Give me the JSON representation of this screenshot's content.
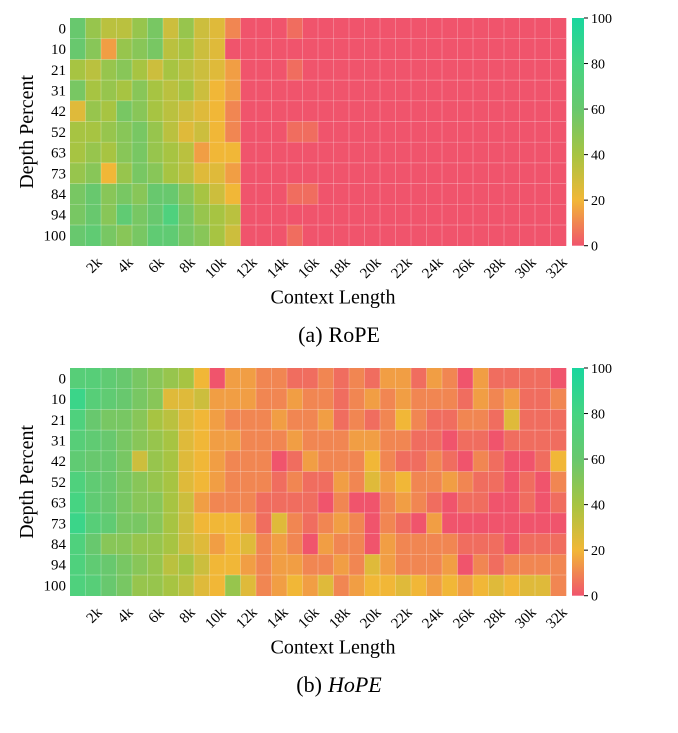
{
  "chart_data": [
    {
      "type": "heatmap",
      "caption_tag": "(a)",
      "model": "RoPE",
      "model_italic": false,
      "xlabel": "Context Length",
      "ylabel": "Depth Percent",
      "y_categories": [
        "0",
        "10",
        "21",
        "31",
        "42",
        "52",
        "63",
        "73",
        "84",
        "94",
        "100"
      ],
      "x_tick_labels": [
        "2k",
        "4k",
        "6k",
        "8k",
        "10k",
        "12k",
        "14k",
        "16k",
        "18k",
        "20k",
        "22k",
        "24k",
        "26k",
        "28k",
        "30k",
        "32k"
      ],
      "n_columns": 32,
      "colorbar": {
        "min": 0,
        "max": 100,
        "ticks": [
          "0",
          "20",
          "40",
          "60",
          "80",
          "100"
        ]
      },
      "values": [
        [
          60,
          45,
          35,
          35,
          45,
          55,
          30,
          45,
          30,
          25,
          10,
          0,
          0,
          0,
          5,
          0,
          0,
          0,
          0,
          0,
          0,
          0,
          0,
          0,
          0,
          0,
          0,
          0,
          0,
          0,
          0,
          0
        ],
        [
          60,
          50,
          15,
          45,
          50,
          55,
          35,
          40,
          30,
          25,
          0,
          0,
          0,
          0,
          0,
          0,
          0,
          0,
          0,
          0,
          0,
          0,
          0,
          0,
          0,
          0,
          0,
          0,
          0,
          0,
          0,
          0
        ],
        [
          40,
          35,
          45,
          50,
          40,
          30,
          40,
          35,
          30,
          25,
          15,
          0,
          0,
          0,
          5,
          0,
          0,
          0,
          0,
          0,
          0,
          0,
          0,
          0,
          0,
          0,
          0,
          0,
          0,
          0,
          0,
          0
        ],
        [
          55,
          40,
          45,
          40,
          50,
          40,
          35,
          40,
          30,
          20,
          15,
          0,
          0,
          0,
          0,
          0,
          0,
          0,
          0,
          0,
          0,
          0,
          0,
          0,
          0,
          0,
          0,
          0,
          0,
          0,
          0,
          0
        ],
        [
          25,
          45,
          40,
          55,
          50,
          40,
          35,
          30,
          25,
          20,
          10,
          0,
          0,
          0,
          0,
          0,
          0,
          0,
          0,
          0,
          0,
          0,
          0,
          0,
          0,
          0,
          0,
          0,
          0,
          0,
          0,
          0
        ],
        [
          40,
          40,
          45,
          50,
          55,
          45,
          35,
          25,
          30,
          20,
          10,
          0,
          0,
          0,
          5,
          5,
          0,
          0,
          0,
          0,
          0,
          0,
          0,
          0,
          0,
          0,
          0,
          0,
          0,
          0,
          0,
          0
        ],
        [
          40,
          45,
          40,
          50,
          55,
          45,
          40,
          35,
          15,
          20,
          20,
          0,
          0,
          0,
          0,
          0,
          0,
          0,
          0,
          0,
          0,
          0,
          0,
          0,
          0,
          0,
          0,
          0,
          0,
          0,
          0,
          0
        ],
        [
          45,
          50,
          20,
          45,
          55,
          50,
          40,
          35,
          25,
          25,
          15,
          0,
          0,
          0,
          0,
          0,
          0,
          0,
          0,
          0,
          0,
          0,
          0,
          0,
          0,
          0,
          0,
          0,
          0,
          0,
          0,
          0
        ],
        [
          55,
          60,
          50,
          55,
          50,
          60,
          60,
          50,
          40,
          30,
          20,
          0,
          0,
          0,
          5,
          5,
          0,
          0,
          0,
          0,
          0,
          0,
          0,
          0,
          0,
          0,
          0,
          0,
          0,
          0,
          0,
          0
        ],
        [
          55,
          60,
          50,
          65,
          55,
          60,
          75,
          55,
          45,
          40,
          35,
          0,
          0,
          0,
          0,
          0,
          0,
          0,
          0,
          0,
          0,
          0,
          0,
          0,
          0,
          0,
          0,
          0,
          0,
          0,
          0,
          0
        ],
        [
          60,
          65,
          55,
          50,
          55,
          65,
          65,
          55,
          50,
          40,
          30,
          0,
          0,
          0,
          5,
          0,
          0,
          0,
          0,
          0,
          0,
          0,
          0,
          0,
          0,
          0,
          0,
          0,
          0,
          0,
          0,
          0
        ]
      ]
    },
    {
      "type": "heatmap",
      "caption_tag": "(b)",
      "model": "HoPE",
      "model_italic": true,
      "xlabel": "Context Length",
      "ylabel": "Depth Percent",
      "y_categories": [
        "0",
        "10",
        "21",
        "31",
        "42",
        "52",
        "63",
        "73",
        "84",
        "94",
        "100"
      ],
      "x_tick_labels": [
        "2k",
        "4k",
        "6k",
        "8k",
        "10k",
        "12k",
        "14k",
        "16k",
        "18k",
        "20k",
        "22k",
        "24k",
        "26k",
        "28k",
        "30k",
        "32k"
      ],
      "n_columns": 32,
      "colorbar": {
        "min": 0,
        "max": 100,
        "ticks": [
          "0",
          "20",
          "40",
          "60",
          "80",
          "100"
        ]
      },
      "values": [
        [
          70,
          70,
          65,
          60,
          55,
          50,
          45,
          40,
          20,
          0,
          15,
          15,
          10,
          10,
          5,
          5,
          10,
          5,
          10,
          5,
          15,
          15,
          5,
          15,
          10,
          0,
          15,
          5,
          5,
          5,
          5,
          0
        ],
        [
          85,
          70,
          65,
          60,
          55,
          50,
          25,
          25,
          30,
          15,
          15,
          15,
          10,
          10,
          15,
          10,
          10,
          5,
          10,
          15,
          10,
          15,
          10,
          10,
          10,
          5,
          15,
          10,
          15,
          5,
          5,
          10
        ],
        [
          75,
          60,
          55,
          55,
          50,
          40,
          35,
          25,
          20,
          15,
          10,
          10,
          10,
          15,
          10,
          10,
          15,
          5,
          10,
          5,
          10,
          20,
          10,
          5,
          5,
          10,
          10,
          5,
          25,
          5,
          5,
          5
        ],
        [
          70,
          65,
          60,
          55,
          50,
          45,
          40,
          25,
          20,
          15,
          15,
          10,
          10,
          10,
          15,
          10,
          10,
          10,
          15,
          15,
          10,
          10,
          5,
          5,
          0,
          5,
          5,
          0,
          5,
          5,
          5,
          5
        ],
        [
          65,
          60,
          60,
          55,
          30,
          45,
          40,
          25,
          20,
          15,
          10,
          10,
          10,
          0,
          5,
          15,
          10,
          10,
          10,
          20,
          10,
          5,
          5,
          10,
          5,
          0,
          10,
          5,
          0,
          0,
          5,
          20
        ],
        [
          75,
          65,
          60,
          55,
          50,
          45,
          40,
          25,
          20,
          15,
          10,
          10,
          10,
          5,
          10,
          5,
          5,
          15,
          10,
          25,
          15,
          20,
          10,
          10,
          15,
          10,
          5,
          5,
          0,
          5,
          0,
          10
        ],
        [
          80,
          65,
          60,
          55,
          50,
          50,
          40,
          30,
          15,
          10,
          10,
          10,
          5,
          5,
          5,
          5,
          0,
          10,
          0,
          0,
          10,
          15,
          10,
          5,
          0,
          5,
          5,
          0,
          0,
          5,
          0,
          5
        ],
        [
          85,
          70,
          65,
          55,
          55,
          50,
          40,
          30,
          20,
          20,
          20,
          15,
          5,
          25,
          10,
          5,
          10,
          15,
          10,
          0,
          10,
          5,
          0,
          15,
          0,
          0,
          0,
          0,
          0,
          0,
          0,
          0
        ],
        [
          75,
          60,
          50,
          50,
          45,
          45,
          40,
          30,
          25,
          15,
          20,
          25,
          10,
          15,
          10,
          0,
          15,
          10,
          10,
          0,
          15,
          10,
          10,
          10,
          10,
          5,
          5,
          5,
          0,
          5,
          5,
          5
        ],
        [
          75,
          65,
          60,
          55,
          50,
          45,
          35,
          40,
          30,
          20,
          20,
          15,
          10,
          15,
          15,
          10,
          10,
          15,
          10,
          25,
          15,
          10,
          10,
          10,
          15,
          0,
          10,
          5,
          10,
          10,
          10,
          10
        ],
        [
          75,
          70,
          60,
          55,
          45,
          45,
          40,
          35,
          25,
          20,
          45,
          25,
          10,
          15,
          20,
          15,
          25,
          10,
          15,
          20,
          20,
          25,
          20,
          15,
          20,
          15,
          20,
          25,
          20,
          25,
          25,
          10
        ]
      ]
    }
  ]
}
